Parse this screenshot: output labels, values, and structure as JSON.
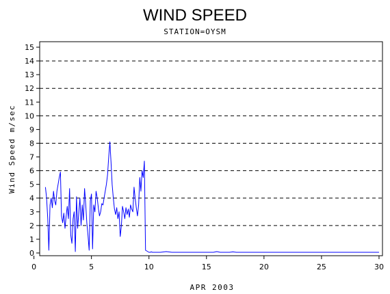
{
  "chart_data": {
    "type": "line",
    "title": "WIND SPEED",
    "subtitle": "STATION=OYSM",
    "xlabel": "APR 2003",
    "ylabel": "Wind Speed m/sec",
    "xlim": [
      0.5,
      30.3
    ],
    "ylim": [
      -0.2,
      15.4
    ],
    "x_ticks": [
      0,
      5,
      10,
      15,
      20,
      25,
      30
    ],
    "y_ticks": [
      0,
      1,
      2,
      3,
      4,
      5,
      6,
      7,
      8,
      9,
      10,
      11,
      12,
      13,
      14,
      15
    ],
    "gridlines_y": [
      2,
      4,
      6,
      8,
      10,
      12,
      14
    ],
    "grid": "dashed horizontal at even values",
    "legend": "none",
    "colors": {
      "line": "#0000ff",
      "axes": "#000000",
      "grid": "#000000"
    },
    "series": [
      {
        "x": [
          1.0,
          1.1,
          1.2,
          1.3,
          1.4,
          1.5,
          1.6,
          1.7,
          1.8,
          1.9,
          2.0,
          2.1,
          2.2,
          2.3,
          2.4,
          2.5,
          2.6,
          2.7,
          2.8,
          2.9,
          3.0,
          3.1,
          3.2,
          3.3,
          3.4,
          3.5,
          3.6,
          3.7,
          3.8,
          3.9,
          4.0,
          4.1,
          4.2,
          4.3,
          4.4,
          4.5,
          4.6,
          4.7,
          4.8,
          4.9,
          5.0,
          5.1,
          5.2,
          5.3,
          5.4,
          5.5,
          5.6,
          5.7,
          5.8,
          5.9,
          6.0,
          6.1,
          6.2,
          6.3,
          6.4,
          6.5,
          6.6,
          6.7,
          6.8,
          6.9,
          7.0,
          7.1,
          7.2,
          7.3,
          7.4,
          7.5,
          7.6,
          7.7,
          7.8,
          7.9,
          8.0,
          8.1,
          8.2,
          8.3,
          8.4,
          8.5,
          8.6,
          8.7,
          8.8,
          8.9,
          9.0,
          9.1,
          9.2,
          9.3,
          9.4,
          9.5,
          9.6,
          9.7,
          9.8,
          9.9,
          10.0,
          10.1,
          10.2,
          10.3,
          10.4,
          10.5,
          10.6,
          10.7,
          11.0,
          11.5,
          12.0,
          12.3,
          12.6,
          13.0,
          13.5,
          14.0,
          14.5,
          15.0,
          15.3,
          15.6,
          15.9,
          16.2,
          16.5,
          17.0,
          17.3,
          17.6,
          17.9,
          18.2,
          18.6,
          19.0,
          19.5,
          20.0,
          20.5,
          21.0,
          21.5,
          22.0,
          22.5,
          23.0,
          23.4,
          23.6,
          23.9,
          24.2,
          24.5,
          25.0,
          25.5,
          26.0,
          26.5,
          27.0,
          27.5,
          28.0,
          28.5,
          28.9,
          29.1,
          29.3,
          29.6,
          30.0
        ],
        "y": [
          4.8,
          4.0,
          2.5,
          0.2,
          3.5,
          4.0,
          3.3,
          4.5,
          3.8,
          3.5,
          4.5,
          5.0,
          5.5,
          5.9,
          2.7,
          2.2,
          2.9,
          1.8,
          2.7,
          3.4,
          2.5,
          4.7,
          1.3,
          0.7,
          2.5,
          3.0,
          0.1,
          4.1,
          1.8,
          3.0,
          4.0,
          2.0,
          3.5,
          2.4,
          4.7,
          3.6,
          2.2,
          1.3,
          0.2,
          3.8,
          4.3,
          0.3,
          3.5,
          3.0,
          4.5,
          4.0,
          3.3,
          2.7,
          3.0,
          3.6,
          3.5,
          4.0,
          4.5,
          5.0,
          5.7,
          7.0,
          8.1,
          6.7,
          5.0,
          4.0,
          3.2,
          2.8,
          3.3,
          2.5,
          3.0,
          1.2,
          2.0,
          3.4,
          3.0,
          2.5,
          3.3,
          2.8,
          3.2,
          2.6,
          3.5,
          3.2,
          3.0,
          4.8,
          4.0,
          3.3,
          2.7,
          3.5,
          5.5,
          4.5,
          6.0,
          5.5,
          6.7,
          0.2,
          0.15,
          0.1,
          0.05,
          0.05,
          0.08,
          0.05,
          0.05,
          0.05,
          0.05,
          0.05,
          0.05,
          0.1,
          0.05,
          0.05,
          0.05,
          0.05,
          0.05,
          0.05,
          0.05,
          0.05,
          0.05,
          0.05,
          0.1,
          0.05,
          0.05,
          0.05,
          0.08,
          0.05,
          0.05,
          0.05,
          0.05,
          0.05,
          0.05,
          0.05,
          0.05,
          0.05,
          0.05,
          0.05,
          0.05,
          0.05,
          0.05,
          0.05,
          0.05,
          0.05,
          0.05,
          0.05,
          0.05,
          0.05,
          0.05,
          0.05,
          0.05,
          0.05,
          0.05,
          0.05,
          0.05,
          0.05,
          0.05,
          0.05
        ]
      }
    ]
  }
}
